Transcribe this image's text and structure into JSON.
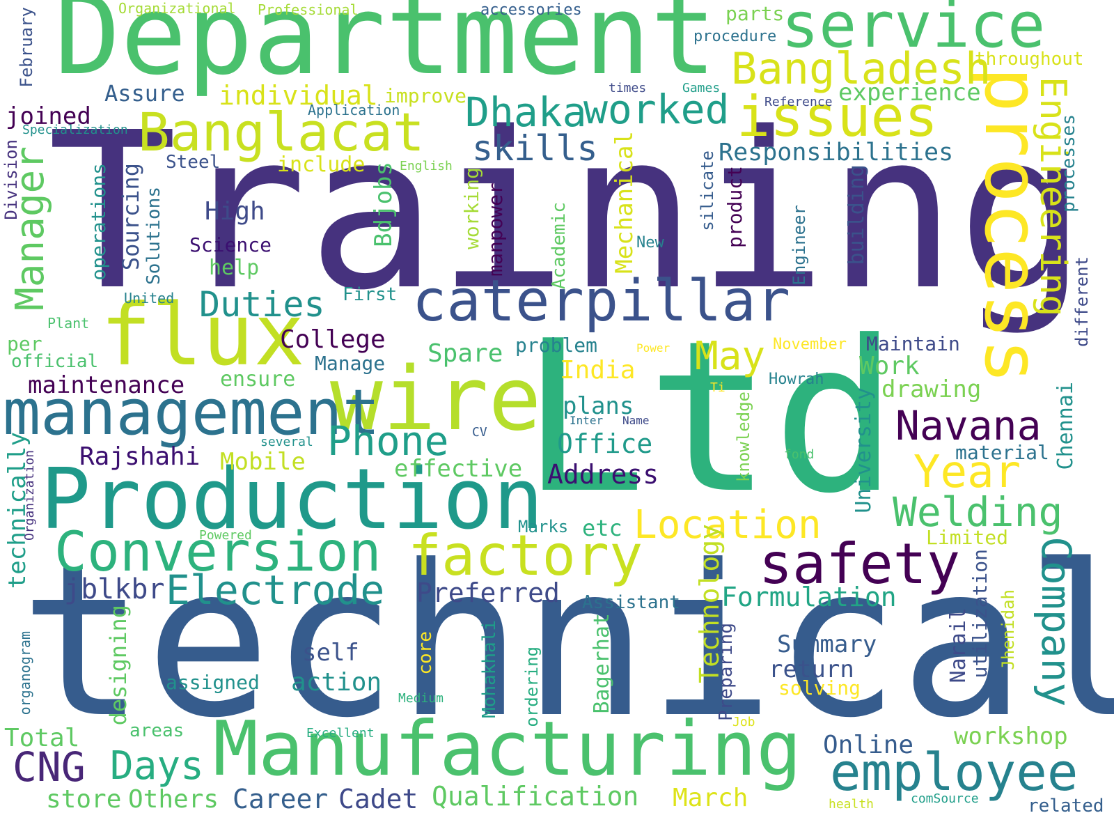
{
  "words": [
    {
      "text": "Training",
      "color": "#46327e",
      "o": "h"
    },
    {
      "text": "technical",
      "color": "#365c8d",
      "o": "h"
    },
    {
      "text": "Ltd",
      "color": "#2db27d",
      "o": "h"
    },
    {
      "text": "Department",
      "color": "#4ac16d",
      "o": "h"
    },
    {
      "text": "Production",
      "color": "#1f998a",
      "o": "h"
    },
    {
      "text": "Manufacturing",
      "color": "#4ac16d",
      "o": "h"
    },
    {
      "text": "wire",
      "color": "#b5de2b",
      "o": "h"
    },
    {
      "text": "flux",
      "color": "#c2df23",
      "o": "h"
    },
    {
      "text": "process",
      "color": "#fde725",
      "o": "v"
    },
    {
      "text": "management",
      "color": "#2c728e",
      "o": "h"
    },
    {
      "text": "caterpillar",
      "color": "#3b528b",
      "o": "h"
    },
    {
      "text": "Conversion",
      "color": "#2db27d",
      "o": "h"
    },
    {
      "text": "factory",
      "color": "#c8e020",
      "o": "h"
    },
    {
      "text": "service",
      "color": "#4ac16d",
      "o": "h"
    },
    {
      "text": "issues",
      "color": "#d8e219",
      "o": "h"
    },
    {
      "text": "Banglacat",
      "color": "#c8e020",
      "o": "h"
    },
    {
      "text": "safety",
      "color": "#440154",
      "o": "h"
    },
    {
      "text": "employee",
      "color": "#26828e",
      "o": "h"
    },
    {
      "text": "Bangladesh",
      "color": "#d8e219",
      "o": "h"
    },
    {
      "text": "Dhaka",
      "color": "#1f9e89",
      "o": "h"
    },
    {
      "text": "worked",
      "color": "#1f9e89",
      "o": "h"
    },
    {
      "text": "Electrode",
      "color": "#21918c",
      "o": "h"
    },
    {
      "text": "Location",
      "color": "#fde725",
      "o": "h"
    },
    {
      "text": "Year",
      "color": "#fde725",
      "o": "h"
    },
    {
      "text": "Phone",
      "color": "#1f9e89",
      "o": "h"
    },
    {
      "text": "Navana",
      "color": "#440154",
      "o": "h"
    },
    {
      "text": "Welding",
      "color": "#4ac16d",
      "o": "h"
    },
    {
      "text": "Company",
      "color": "#21918c",
      "o": "v"
    },
    {
      "text": "Engineering",
      "color": "#d8e219",
      "o": "v"
    },
    {
      "text": "Manager",
      "color": "#5ec962",
      "o": "r"
    },
    {
      "text": "skills",
      "color": "#355f8d",
      "o": "h"
    },
    {
      "text": "Duties",
      "color": "#21918c",
      "o": "h"
    },
    {
      "text": "May",
      "color": "#d8e219",
      "o": "h"
    },
    {
      "text": "CNG",
      "color": "#482677",
      "o": "h"
    },
    {
      "text": "Days",
      "color": "#27ad81",
      "o": "h"
    },
    {
      "text": "Responsibilities",
      "color": "#2c728e",
      "o": "h"
    },
    {
      "text": "individual",
      "color": "#d8e219",
      "o": "h"
    },
    {
      "text": "experience",
      "color": "#5ec962",
      "o": "h"
    },
    {
      "text": "Qualification",
      "color": "#5ec962",
      "o": "h"
    },
    {
      "text": "Formulation",
      "color": "#21a585",
      "o": "h"
    },
    {
      "text": "Preferred",
      "color": "#3e4a89",
      "o": "h"
    },
    {
      "text": "Address",
      "color": "#3b0f70",
      "o": "h"
    },
    {
      "text": "Office",
      "color": "#1f9a8a",
      "o": "h"
    },
    {
      "text": "Career",
      "color": "#355f8d",
      "o": "h"
    },
    {
      "text": "Cadet",
      "color": "#3e4989",
      "o": "h"
    },
    {
      "text": "workshop",
      "color": "#7ad151",
      "o": "h"
    },
    {
      "text": "Online",
      "color": "#365c8d",
      "o": "h"
    },
    {
      "text": "March",
      "color": "#dde318",
      "o": "h"
    },
    {
      "text": "Others",
      "color": "#5ec962",
      "o": "h"
    },
    {
      "text": "store",
      "color": "#5ec962",
      "o": "h"
    },
    {
      "text": "Total",
      "color": "#5ec962",
      "o": "h"
    },
    {
      "text": "jblkbr",
      "color": "#3e4a89",
      "o": "h"
    },
    {
      "text": "Rajshahi",
      "color": "#3b0f70",
      "o": "h"
    },
    {
      "text": "maintenance",
      "color": "#440154",
      "o": "h"
    },
    {
      "text": "College",
      "color": "#440154",
      "o": "h"
    },
    {
      "text": "India",
      "color": "#fde725",
      "o": "h"
    },
    {
      "text": "plans",
      "color": "#21918c",
      "o": "h"
    },
    {
      "text": "Work",
      "color": "#5ec962",
      "o": "h"
    },
    {
      "text": "drawing",
      "color": "#7ad151",
      "o": "h"
    },
    {
      "text": "Summary",
      "color": "#365c8d",
      "o": "h"
    },
    {
      "text": "return",
      "color": "#3b528b",
      "o": "h"
    },
    {
      "text": "self",
      "color": "#3b528b",
      "o": "h"
    },
    {
      "text": "action",
      "color": "#21918c",
      "o": "h"
    },
    {
      "text": "assigned",
      "color": "#21918c",
      "o": "h"
    },
    {
      "text": "Mobile",
      "color": "#c2df23",
      "o": "h"
    },
    {
      "text": "effective",
      "color": "#5ec962",
      "o": "h"
    },
    {
      "text": "Spare",
      "color": "#4ac16d",
      "o": "h"
    },
    {
      "text": "ensure",
      "color": "#5ec962",
      "o": "h"
    },
    {
      "text": "Maintain",
      "color": "#3e4a89",
      "o": "h"
    },
    {
      "text": "Manage",
      "color": "#2c728e",
      "o": "h"
    },
    {
      "text": "problem",
      "color": "#26828e",
      "o": "h"
    },
    {
      "text": "High",
      "color": "#3e4a89",
      "o": "h"
    },
    {
      "text": "Science",
      "color": "#3b0f70",
      "o": "h"
    },
    {
      "text": "help",
      "color": "#5ec962",
      "o": "h"
    },
    {
      "text": "Assure",
      "color": "#355f8d",
      "o": "h"
    },
    {
      "text": "joined",
      "color": "#440154",
      "o": "h"
    },
    {
      "text": "improve",
      "color": "#c8e020",
      "o": "h"
    },
    {
      "text": "include",
      "color": "#d8e219",
      "o": "h"
    },
    {
      "text": "Steel",
      "color": "#3b528b",
      "o": "h"
    },
    {
      "text": "per",
      "color": "#5ec962",
      "o": "h"
    },
    {
      "text": "official",
      "color": "#4ac16d",
      "o": "h"
    },
    {
      "text": "Limited",
      "color": "#c2df23",
      "o": "h"
    },
    {
      "text": "Assistant",
      "color": "#2c728e",
      "o": "h"
    },
    {
      "text": "etc",
      "color": "#2db27d",
      "o": "h"
    },
    {
      "text": "Marks",
      "color": "#21918c",
      "o": "h"
    },
    {
      "text": "November",
      "color": "#fde725",
      "o": "h"
    },
    {
      "text": "Howrah",
      "color": "#26828e",
      "o": "h"
    },
    {
      "text": "material",
      "color": "#2c728e",
      "o": "h"
    },
    {
      "text": "solving",
      "color": "#fde725",
      "o": "h"
    },
    {
      "text": "throughout",
      "color": "#d8e219",
      "o": "h"
    },
    {
      "text": "parts",
      "color": "#7ad151",
      "o": "h"
    },
    {
      "text": "procedure",
      "color": "#2c728e",
      "o": "h"
    },
    {
      "text": "accessories",
      "color": "#355f8d",
      "o": "h"
    },
    {
      "text": "Professional",
      "color": "#a5db36",
      "o": "h"
    },
    {
      "text": "Organizational",
      "color": "#a5db36",
      "o": "h"
    },
    {
      "text": "Application",
      "color": "#2c728e",
      "o": "h"
    },
    {
      "text": "Specialization",
      "color": "#21918c",
      "o": "h"
    },
    {
      "text": "times",
      "color": "#3e4a89",
      "o": "h"
    },
    {
      "text": "Games",
      "color": "#1f9e89",
      "o": "h"
    },
    {
      "text": "Reference",
      "color": "#3e4a89",
      "o": "h"
    },
    {
      "text": "English",
      "color": "#7ad151",
      "o": "h"
    },
    {
      "text": "First",
      "color": "#21918c",
      "o": "h"
    },
    {
      "text": "United",
      "color": "#26828e",
      "o": "h"
    },
    {
      "text": "Plant",
      "color": "#4ac16d",
      "o": "h"
    },
    {
      "text": "New",
      "color": "#26828e",
      "o": "h"
    },
    {
      "text": "Power",
      "color": "#fde725",
      "o": "h"
    },
    {
      "text": "Ti",
      "color": "#fde725",
      "o": "h"
    },
    {
      "text": "Inter",
      "color": "#2c728e",
      "o": "h"
    },
    {
      "text": "Name",
      "color": "#3e4a89",
      "o": "h"
    },
    {
      "text": "several",
      "color": "#21918c",
      "o": "h"
    },
    {
      "text": "CV",
      "color": "#365c8d",
      "o": "h"
    },
    {
      "text": "fond",
      "color": "#4ac16d",
      "o": "h"
    },
    {
      "text": "Powered",
      "color": "#5ec962",
      "o": "h"
    },
    {
      "text": "Medium",
      "color": "#2db27d",
      "o": "h"
    },
    {
      "text": "areas",
      "color": "#4ac16d",
      "o": "h"
    },
    {
      "text": "Excellent",
      "color": "#27ad81",
      "o": "h"
    },
    {
      "text": "Job",
      "color": "#dde318",
      "o": "h"
    },
    {
      "text": "health",
      "color": "#c8e020",
      "o": "h"
    },
    {
      "text": "comSource",
      "color": "#1f9e89",
      "o": "h"
    },
    {
      "text": "related",
      "color": "#355f8d",
      "o": "h"
    },
    {
      "text": "February",
      "color": "#3b528b",
      "o": "r"
    },
    {
      "text": "Division",
      "color": "#46327e",
      "o": "r"
    },
    {
      "text": "technically",
      "color": "#1f9e89",
      "o": "r"
    },
    {
      "text": "operations",
      "color": "#21918c",
      "o": "r"
    },
    {
      "text": "Sourcing",
      "color": "#3b528b",
      "o": "r"
    },
    {
      "text": "Solutions",
      "color": "#2c728e",
      "o": "r"
    },
    {
      "text": "Bdjobs",
      "color": "#4ac16d",
      "o": "r"
    },
    {
      "text": "working",
      "color": "#a5db36",
      "o": "r"
    },
    {
      "text": "manpower",
      "color": "#440154",
      "o": "r"
    },
    {
      "text": "Mechanical",
      "color": "#d8e219",
      "o": "r"
    },
    {
      "text": "Academic",
      "color": "#5ec962",
      "o": "r"
    },
    {
      "text": "silicate",
      "color": "#365c8d",
      "o": "r"
    },
    {
      "text": "product",
      "color": "#440154",
      "o": "r"
    },
    {
      "text": "Engineer",
      "color": "#2c728e",
      "o": "r"
    },
    {
      "text": "building",
      "color": "#3b528b",
      "o": "r"
    },
    {
      "text": "knowledge",
      "color": "#7ad151",
      "o": "r"
    },
    {
      "text": "University",
      "color": "#21918c",
      "o": "r"
    },
    {
      "text": "Technology",
      "color": "#c2df23",
      "o": "r"
    },
    {
      "text": "Preparing",
      "color": "#3e4a89",
      "o": "r"
    },
    {
      "text": "Mohakhali",
      "color": "#1f9e89",
      "o": "r"
    },
    {
      "text": "ordering",
      "color": "#27ad81",
      "o": "r"
    },
    {
      "text": "Bagerhat",
      "color": "#4ac16d",
      "o": "r"
    },
    {
      "text": "designing",
      "color": "#5ec962",
      "o": "r"
    },
    {
      "text": "core",
      "color": "#fde725",
      "o": "r"
    },
    {
      "text": "Organization",
      "color": "#46327e",
      "o": "r"
    },
    {
      "text": "organogram",
      "color": "#2c728e",
      "o": "r"
    },
    {
      "text": "Narail",
      "color": "#3e4a89",
      "o": "r"
    },
    {
      "text": "utilization",
      "color": "#3b528b",
      "o": "r"
    },
    {
      "text": "Jhenidah",
      "color": "#c2df23",
      "o": "r"
    },
    {
      "text": "Chennai",
      "color": "#21918c",
      "o": "r"
    },
    {
      "text": "processes",
      "color": "#26828e",
      "o": "r"
    },
    {
      "text": "different",
      "color": "#3e4a89",
      "o": "r"
    }
  ]
}
